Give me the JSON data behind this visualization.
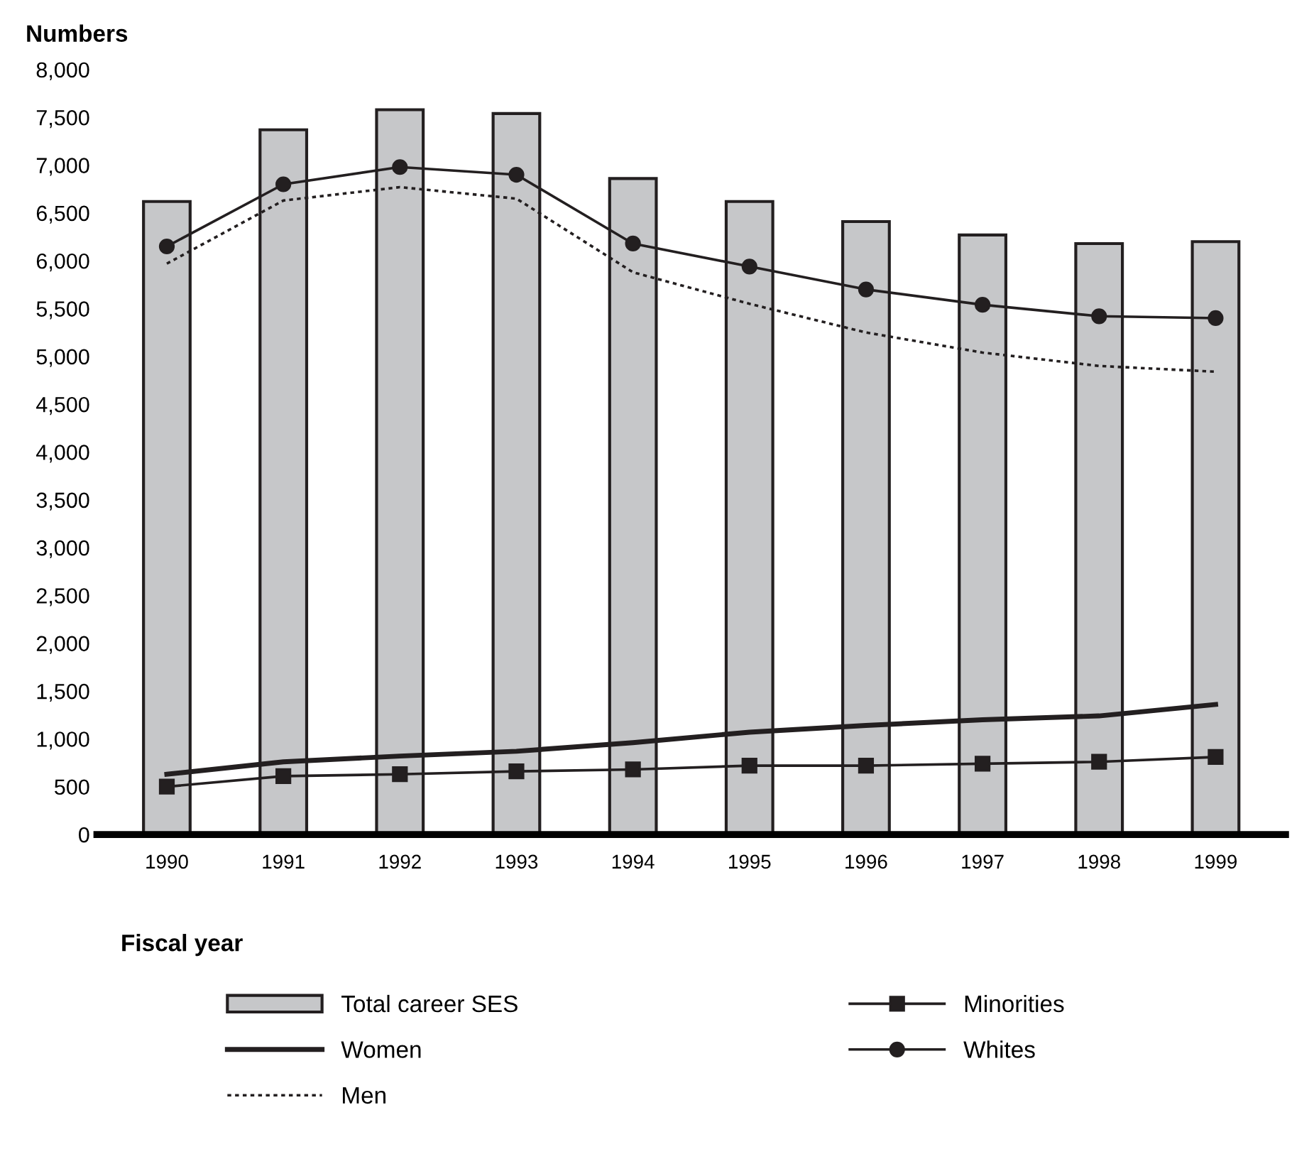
{
  "chart_data": {
    "type": "bar",
    "ylabel": "Numbers",
    "xlabel": "Fiscal year",
    "categories": [
      "1990",
      "1991",
      "1992",
      "1993",
      "1994",
      "1995",
      "1996",
      "1997",
      "1998",
      "1999"
    ],
    "series": [
      {
        "name": "Total career SES",
        "color": "#c6c7c9",
        "values": [
          6620,
          7370,
          7580,
          7540,
          6860,
          6620,
          6410,
          6270,
          6180,
          6200
        ]
      },
      {
        "name": "Women",
        "type": "line",
        "color": "#231f20",
        "line_style": "solid",
        "marker": "none",
        "values": [
          630,
          760,
          820,
          870,
          960,
          1070,
          1140,
          1200,
          1240,
          1360
        ]
      },
      {
        "name": "Men",
        "type": "line",
        "color": "#231f20",
        "line_style": "dotted",
        "marker": "none",
        "values": [
          5970,
          6630,
          6770,
          6650,
          5880,
          5550,
          5250,
          5040,
          4900,
          4840
        ]
      },
      {
        "name": "Minorities",
        "type": "line",
        "color": "#231f20",
        "line_style": "solid",
        "marker": "square",
        "values": [
          500,
          610,
          630,
          660,
          680,
          720,
          720,
          740,
          760,
          810
        ]
      },
      {
        "name": "Whites",
        "type": "line",
        "color": "#231f20",
        "line_style": "solid",
        "marker": "circle",
        "values": [
          6150,
          6800,
          6980,
          6900,
          6180,
          5940,
          5700,
          5540,
          5420,
          5400
        ]
      }
    ],
    "ylim": [
      0,
      8000
    ],
    "yticks": [
      {
        "value": 0,
        "label": "0"
      },
      {
        "value": 500,
        "label": "500"
      },
      {
        "value": 1000,
        "label": "1,000"
      },
      {
        "value": 1500,
        "label": "1,500"
      },
      {
        "value": 2000,
        "label": "2,000"
      },
      {
        "value": 2500,
        "label": "2,500"
      },
      {
        "value": 3000,
        "label": "3,000"
      },
      {
        "value": 3500,
        "label": "3,500"
      },
      {
        "value": 4000,
        "label": "4,000"
      },
      {
        "value": 4500,
        "label": "4,500"
      },
      {
        "value": 5000,
        "label": "5,000"
      },
      {
        "value": 5500,
        "label": "5,500"
      },
      {
        "value": 6000,
        "label": "6,000"
      },
      {
        "value": 6500,
        "label": "6,500"
      },
      {
        "value": 7000,
        "label": "7,000"
      },
      {
        "value": 7500,
        "label": "7,500"
      },
      {
        "value": 8000,
        "label": "8,000"
      }
    ],
    "grid": false,
    "legend": "bottom"
  }
}
